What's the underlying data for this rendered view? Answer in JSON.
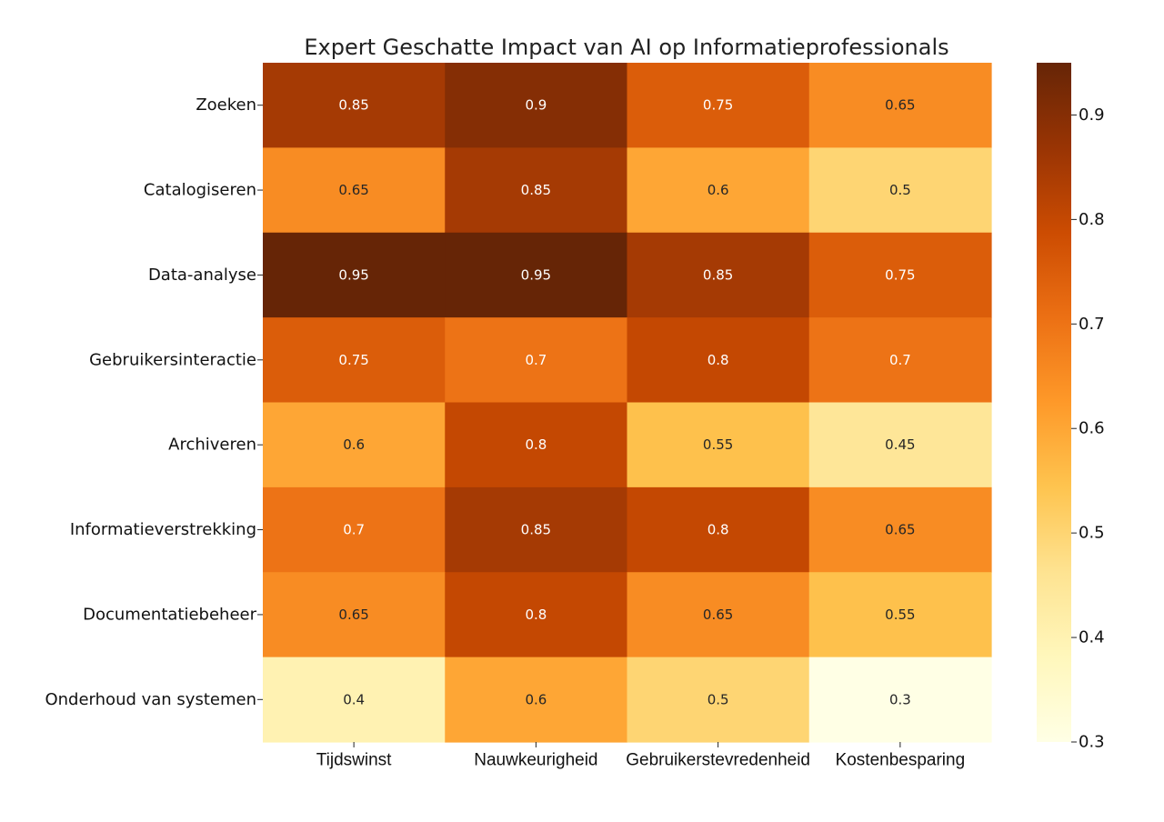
{
  "chart_data": {
    "type": "heatmap",
    "title": "Expert Geschatte Impact van AI op Informatieprofessionals",
    "rows": [
      "Zoeken",
      "Catalogiseren",
      "Data-analyse",
      "Gebruikersinteractie",
      "Archiveren",
      "Informatieverstrekking",
      "Documentatiebeheer",
      "Onderhoud van systemen"
    ],
    "columns": [
      "Tijdswinst",
      "Nauwkeurigheid",
      "Gebruikerstevredenheid",
      "Kostenbesparing"
    ],
    "values": [
      [
        0.85,
        0.9,
        0.75,
        0.65
      ],
      [
        0.65,
        0.85,
        0.6,
        0.5
      ],
      [
        0.95,
        0.95,
        0.85,
        0.75
      ],
      [
        0.75,
        0.7,
        0.8,
        0.7
      ],
      [
        0.6,
        0.8,
        0.55,
        0.45
      ],
      [
        0.7,
        0.85,
        0.8,
        0.65
      ],
      [
        0.65,
        0.8,
        0.65,
        0.55
      ],
      [
        0.4,
        0.6,
        0.5,
        0.3
      ]
    ],
    "colormap": "YlOrBr",
    "vmin": 0.3,
    "vmax": 0.95,
    "colorbar_ticks": [
      "0.3",
      "0.4",
      "0.5",
      "0.6",
      "0.7",
      "0.8",
      "0.9"
    ],
    "colorbar_position": "right",
    "annotations": true,
    "grid": false
  }
}
